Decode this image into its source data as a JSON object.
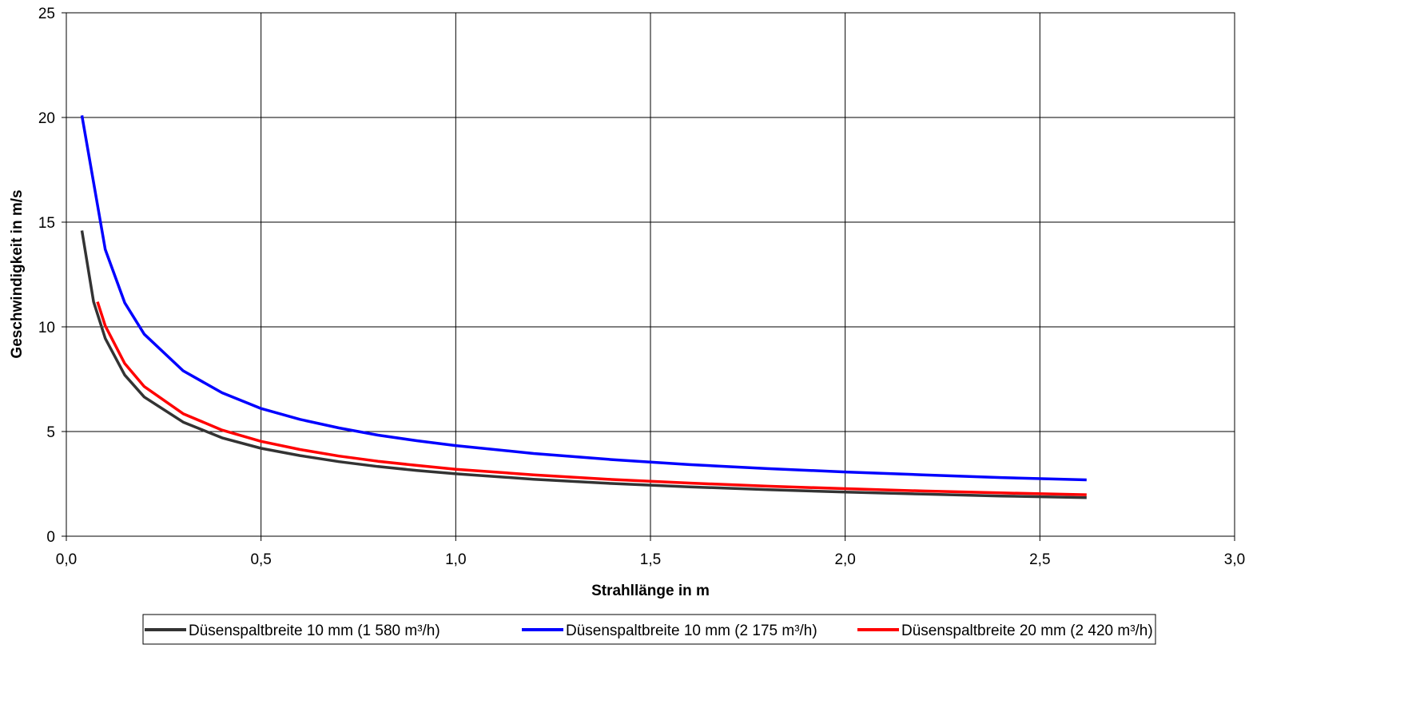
{
  "chart_data": {
    "type": "line",
    "title": "",
    "xlabel": "Strahllänge in m",
    "ylabel": "Geschwindigkeit in m/s",
    "xlim": [
      0,
      3
    ],
    "ylim": [
      0,
      25
    ],
    "x_ticks": [
      0,
      0.5,
      1,
      1.5,
      2,
      2.5,
      3
    ],
    "x_tick_labels": [
      "0,0",
      "0,5",
      "1,0",
      "1,5",
      "2,0",
      "2,5",
      "3,0"
    ],
    "y_ticks": [
      0,
      5,
      10,
      15,
      20,
      25
    ],
    "y_tick_labels": [
      "0",
      "5",
      "10",
      "15",
      "20",
      "25"
    ],
    "grid": true,
    "legend_position": "bottom",
    "series": [
      {
        "name": "Düsenspaltbreite 10 mm (1 580 m³/h)",
        "color": "#333333",
        "x": [
          0.04,
          0.07,
          0.1,
          0.15,
          0.2,
          0.3,
          0.4,
          0.5,
          0.6,
          0.7,
          0.8,
          0.9,
          1.0,
          1.2,
          1.4,
          1.6,
          1.8,
          2.0,
          2.2,
          2.4,
          2.62
        ],
        "y": [
          14.6,
          11.2,
          9.45,
          7.7,
          6.65,
          5.45,
          4.7,
          4.2,
          3.85,
          3.56,
          3.33,
          3.14,
          2.98,
          2.72,
          2.52,
          2.36,
          2.22,
          2.11,
          2.01,
          1.92,
          1.84
        ]
      },
      {
        "name": "Düsenspaltbreite 10 mm (2 175 m³/h)",
        "color": "#0000FF",
        "x": [
          0.04,
          0.1,
          0.15,
          0.2,
          0.3,
          0.4,
          0.5,
          0.6,
          0.7,
          0.8,
          0.9,
          1.0,
          1.2,
          1.4,
          1.6,
          1.8,
          2.0,
          2.2,
          2.4,
          2.62
        ],
        "y": [
          20.1,
          13.7,
          11.15,
          9.65,
          7.9,
          6.85,
          6.1,
          5.58,
          5.17,
          4.83,
          4.56,
          4.33,
          3.95,
          3.66,
          3.42,
          3.23,
          3.07,
          2.93,
          2.8,
          2.69
        ]
      },
      {
        "name": "Düsenspaltbreite 20 mm (2 420 m³/h)",
        "color": "#FF0000",
        "x": [
          0.08,
          0.1,
          0.15,
          0.2,
          0.3,
          0.4,
          0.5,
          0.6,
          0.7,
          0.8,
          0.9,
          1.0,
          1.2,
          1.4,
          1.6,
          1.8,
          2.0,
          2.2,
          2.4,
          2.62
        ],
        "y": [
          11.2,
          10.05,
          8.25,
          7.15,
          5.85,
          5.07,
          4.53,
          4.14,
          3.83,
          3.58,
          3.38,
          3.2,
          2.93,
          2.71,
          2.54,
          2.39,
          2.27,
          2.16,
          2.07,
          1.98
        ]
      }
    ]
  }
}
